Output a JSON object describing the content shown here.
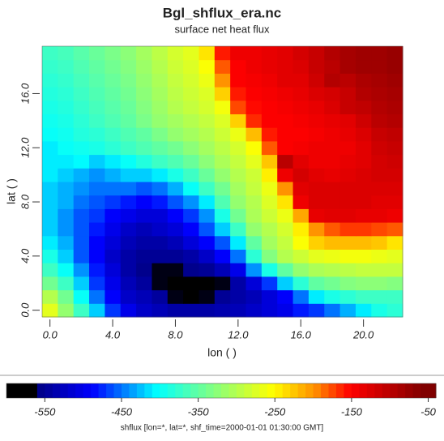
{
  "chart_data": {
    "type": "heatmap",
    "title": "Bgl_shflux_era.nc",
    "subtitle": "surface net heat flux",
    "x_label": "lon ( )",
    "y_label": "lat ( )",
    "colorbar_label": "shflux [lon=*, lat=*, shf_time=2000-01-01 01:30:00 GMT]",
    "x": [
      0,
      1,
      2,
      3,
      4,
      5,
      6,
      7,
      8,
      9,
      10,
      11,
      12,
      13,
      14,
      15,
      16,
      17,
      18,
      19,
      20,
      21,
      22
    ],
    "y": [
      0,
      1,
      2,
      3,
      4,
      5,
      6,
      7,
      8,
      9,
      10,
      11,
      12,
      13,
      14,
      15,
      16,
      17,
      18,
      19
    ],
    "xlim": [
      -0.5,
      22.5
    ],
    "ylim": [
      -0.5,
      19.5
    ],
    "xticks": [
      {
        "value": 0,
        "label": "0.0"
      },
      {
        "value": 4,
        "label": "4.0"
      },
      {
        "value": 8,
        "label": "8.0"
      },
      {
        "value": 12,
        "label": "12.0"
      },
      {
        "value": 16,
        "label": "16.0"
      },
      {
        "value": 20,
        "label": "20.0"
      }
    ],
    "yticks": [
      {
        "value": 0,
        "label": "0.0"
      },
      {
        "value": 4,
        "label": "4.0"
      },
      {
        "value": 8,
        "label": "8.0"
      },
      {
        "value": 12,
        "label": "12.0"
      },
      {
        "value": 16,
        "label": "16.0"
      }
    ],
    "clim": [
      -600,
      -40
    ],
    "cticks": [
      -550,
      -450,
      -350,
      -250,
      -150,
      -50
    ],
    "z": [
      [
        -270,
        -320,
        -370,
        -420,
        -470,
        -500,
        -520,
        -530,
        -540,
        -540,
        -540,
        -535,
        -530,
        -520,
        -510,
        -500,
        -480,
        -470,
        -450,
        -430,
        -410,
        -390,
        -380
      ],
      [
        -300,
        -340,
        -400,
        -450,
        -490,
        -520,
        -530,
        -545,
        -560,
        -570,
        -560,
        -550,
        -540,
        -530,
        -510,
        -490,
        -450,
        -410,
        -390,
        -380,
        -370,
        -370,
        -370
      ],
      [
        -340,
        -370,
        -420,
        -470,
        -500,
        -530,
        -545,
        -560,
        -580,
        -600,
        -600,
        -560,
        -540,
        -510,
        -470,
        -420,
        -380,
        -350,
        -340,
        -330,
        -325,
        -325,
        -330
      ],
      [
        -370,
        -400,
        -440,
        -480,
        -510,
        -540,
        -555,
        -560,
        -560,
        -555,
        -550,
        -530,
        -500,
        -440,
        -390,
        -350,
        -320,
        -305,
        -300,
        -295,
        -290,
        -290,
        -290
      ],
      [
        -390,
        -420,
        -460,
        -490,
        -520,
        -540,
        -550,
        -550,
        -550,
        -540,
        -520,
        -490,
        -450,
        -380,
        -330,
        -300,
        -285,
        -270,
        -265,
        -260,
        -260,
        -265,
        -270
      ],
      [
        -410,
        -430,
        -460,
        -490,
        -510,
        -530,
        -540,
        -540,
        -530,
        -510,
        -490,
        -460,
        -410,
        -350,
        -310,
        -290,
        -255,
        -230,
        -220,
        -220,
        -220,
        -225,
        -240
      ],
      [
        -420,
        -440,
        -460,
        -480,
        -500,
        -520,
        -530,
        -520,
        -510,
        -490,
        -460,
        -420,
        -370,
        -320,
        -300,
        -280,
        -245,
        -200,
        -180,
        -170,
        -170,
        -175,
        -180
      ],
      [
        -420,
        -440,
        -460,
        -470,
        -490,
        -500,
        -510,
        -510,
        -490,
        -470,
        -440,
        -390,
        -340,
        -305,
        -285,
        -265,
        -210,
        -135,
        -130,
        -130,
        -135,
        -135,
        -140
      ],
      [
        -420,
        -430,
        -450,
        -460,
        -470,
        -480,
        -490,
        -480,
        -460,
        -440,
        -410,
        -360,
        -320,
        -300,
        -275,
        -240,
        -140,
        -125,
        -125,
        -125,
        -125,
        -130,
        -130
      ],
      [
        -420,
        -430,
        -440,
        -450,
        -450,
        -450,
        -460,
        -450,
        -430,
        -400,
        -370,
        -340,
        -310,
        -290,
        -265,
        -200,
        -130,
        -125,
        -125,
        -125,
        -125,
        -125,
        -125
      ],
      [
        -410,
        -420,
        -430,
        -440,
        -430,
        -420,
        -420,
        -410,
        -390,
        -370,
        -345,
        -320,
        -300,
        -285,
        -245,
        -140,
        -120,
        -130,
        -135,
        -130,
        -125,
        -120,
        -120
      ],
      [
        -410,
        -410,
        -405,
        -420,
        -410,
        -400,
        -385,
        -370,
        -360,
        -345,
        -325,
        -305,
        -290,
        -270,
        -225,
        -100,
        -130,
        -140,
        -140,
        -135,
        -130,
        -120,
        -115
      ],
      [
        -410,
        -400,
        -395,
        -390,
        -380,
        -370,
        -360,
        -350,
        -340,
        -325,
        -310,
        -295,
        -280,
        -255,
        -180,
        -150,
        -145,
        -140,
        -140,
        -140,
        -130,
        -115,
        -110
      ],
      [
        -400,
        -395,
        -385,
        -380,
        -370,
        -360,
        -350,
        -335,
        -320,
        -310,
        -300,
        -285,
        -265,
        -220,
        -160,
        -150,
        -150,
        -145,
        -140,
        -135,
        -125,
        -110,
        -105
      ],
      [
        -395,
        -390,
        -380,
        -370,
        -360,
        -350,
        -335,
        -320,
        -310,
        -300,
        -290,
        -275,
        -230,
        -165,
        -150,
        -150,
        -145,
        -140,
        -135,
        -130,
        -115,
        -100,
        -95
      ],
      [
        -390,
        -385,
        -375,
        -365,
        -355,
        -345,
        -330,
        -315,
        -300,
        -290,
        -280,
        -260,
        -175,
        -155,
        -150,
        -145,
        -140,
        -135,
        -125,
        -110,
        -105,
        -95,
        -90
      ],
      [
        -385,
        -380,
        -370,
        -360,
        -350,
        -340,
        -325,
        -310,
        -295,
        -285,
        -275,
        -230,
        -160,
        -150,
        -145,
        -140,
        -135,
        -125,
        -120,
        -110,
        -95,
        -90,
        -85
      ],
      [
        -380,
        -375,
        -365,
        -355,
        -345,
        -335,
        -320,
        -305,
        -290,
        -280,
        -265,
        -200,
        -150,
        -145,
        -140,
        -130,
        -130,
        -115,
        -95,
        -100,
        -90,
        -85,
        -80
      ],
      [
        -375,
        -370,
        -360,
        -350,
        -340,
        -330,
        -315,
        -300,
        -285,
        -275,
        -255,
        -180,
        -150,
        -140,
        -135,
        -130,
        -125,
        -110,
        -100,
        -85,
        -80,
        -80,
        -75
      ],
      [
        -370,
        -365,
        -355,
        -345,
        -335,
        -325,
        -310,
        -295,
        -280,
        -270,
        -240,
        -160,
        -140,
        -140,
        -135,
        -130,
        -120,
        -110,
        -95,
        -85,
        -80,
        -80,
        -75
      ]
    ]
  }
}
